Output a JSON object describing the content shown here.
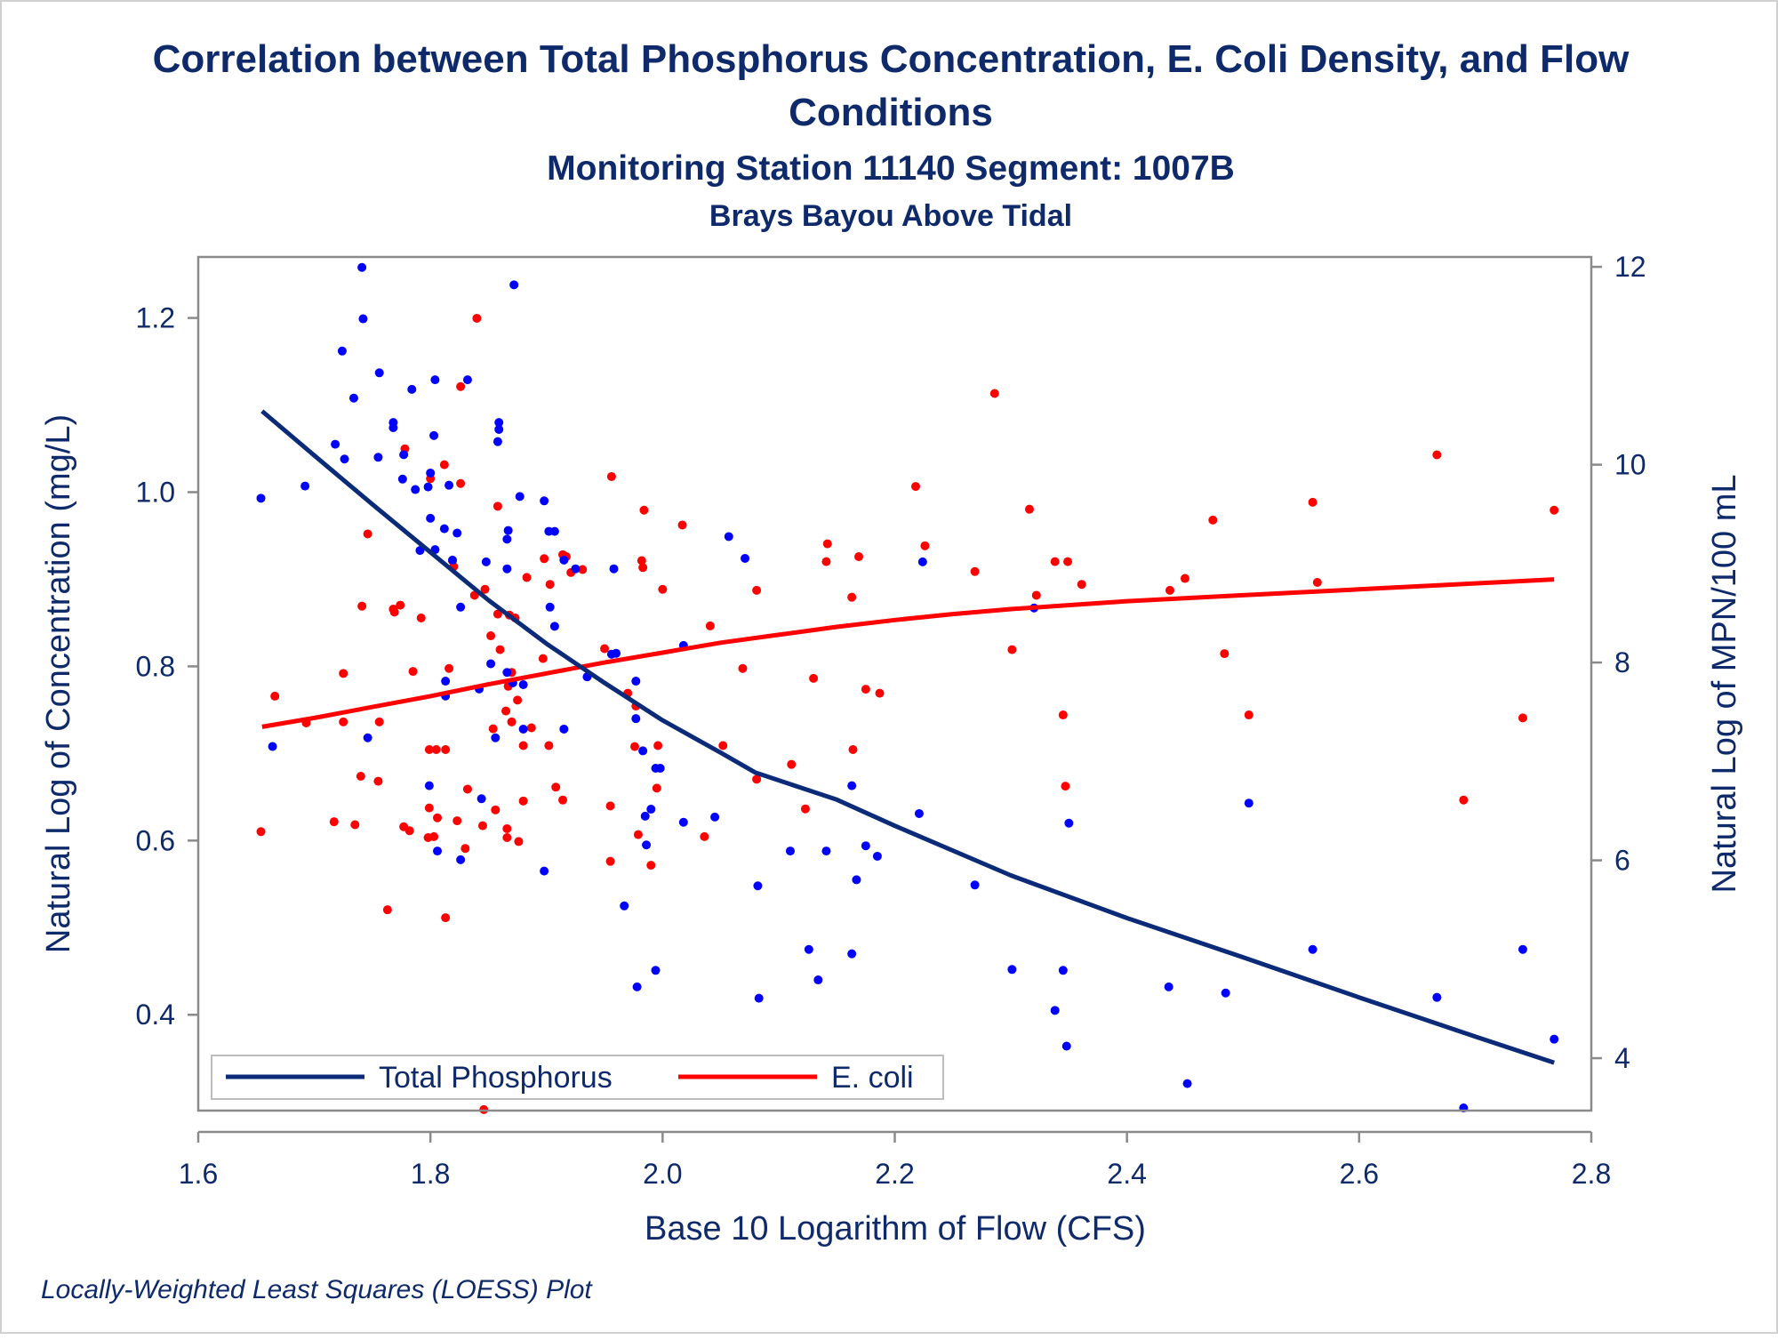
{
  "chart_data": {
    "type": "scatter",
    "title_line1": "Correlation between Total Phosphorus Concentration, E. Coli Density, and Flow",
    "title_line2": "Conditions",
    "subtitle": "Monitoring Station 11140 Segment: 1007B",
    "subtitle2": "Brays Bayou Above Tidal",
    "xlabel": "Base 10 Logarithm of Flow (CFS)",
    "ylabel": "Natural Log of Concentration (mg/L)",
    "y2label": "Natural Log of MPN/100 mL",
    "footnote": "Locally-Weighted Least Squares (LOESS) Plot",
    "xlim": [
      1.6,
      2.8
    ],
    "ylim": [
      0.29,
      1.27
    ],
    "y2lim": [
      3.47,
      12.1
    ],
    "xticks": [
      1.6,
      1.8,
      2.0,
      2.2,
      2.4,
      2.6,
      2.8
    ],
    "xtick_labels": [
      "1.6",
      "1.8",
      "2.0",
      "2.2",
      "2.4",
      "2.6",
      "2.8"
    ],
    "yticks": [
      0.4,
      0.6,
      0.8,
      1.0,
      1.2
    ],
    "ytick_labels": [
      "0.4",
      "0.6",
      "0.8",
      "1.0",
      "1.2"
    ],
    "y2ticks": [
      4,
      6,
      8,
      10,
      12
    ],
    "y2tick_labels": [
      "4",
      "6",
      "8",
      "10",
      "12"
    ],
    "grid": false,
    "legend_position": "bottom-left inside",
    "text_color": "#0f2a6b",
    "axis_color": "#8a8a8a",
    "series": [
      {
        "name": "Total Phosphorus",
        "axis": "left",
        "color": "#0b2a78",
        "point_color": "#0000ff",
        "points": [
          [
            1.654,
            0.993
          ],
          [
            1.664,
            0.708
          ],
          [
            1.692,
            1.007
          ],
          [
            1.718,
            1.055
          ],
          [
            1.724,
            1.162
          ],
          [
            1.726,
            1.038
          ],
          [
            1.734,
            1.108
          ],
          [
            1.741,
            1.258
          ],
          [
            1.742,
            1.199
          ],
          [
            1.746,
            0.718
          ],
          [
            1.755,
            1.04
          ],
          [
            1.756,
            1.137
          ],
          [
            1.768,
            1.074
          ],
          [
            1.768,
            1.08
          ],
          [
            1.776,
            1.015
          ],
          [
            1.777,
            1.043
          ],
          [
            1.784,
            1.118
          ],
          [
            1.787,
            1.003
          ],
          [
            1.791,
            0.933
          ],
          [
            1.798,
            1.006
          ],
          [
            1.799,
            0.663
          ],
          [
            1.8,
            0.97
          ],
          [
            1.8,
            1.022
          ],
          [
            1.803,
            1.065
          ],
          [
            1.804,
            1.129
          ],
          [
            1.804,
            0.934
          ],
          [
            1.806,
            0.588
          ],
          [
            1.812,
            0.958
          ],
          [
            1.813,
            0.783
          ],
          [
            1.813,
            0.766
          ],
          [
            1.816,
            1.008
          ],
          [
            1.819,
            0.922
          ],
          [
            1.823,
            0.953
          ],
          [
            1.826,
            0.578
          ],
          [
            1.826,
            0.868
          ],
          [
            1.832,
            1.129
          ],
          [
            1.842,
            0.774
          ],
          [
            1.844,
            0.648
          ],
          [
            1.848,
            0.92
          ],
          [
            1.852,
            0.803
          ],
          [
            1.856,
            0.718
          ],
          [
            1.858,
            1.058
          ],
          [
            1.859,
            1.072
          ],
          [
            1.859,
            1.08
          ],
          [
            1.866,
            0.793
          ],
          [
            1.866,
            0.912
          ],
          [
            1.866,
            0.946
          ],
          [
            1.867,
            0.956
          ],
          [
            1.871,
            0.781
          ],
          [
            1.872,
            1.238
          ],
          [
            1.877,
            0.995
          ],
          [
            1.88,
            0.728
          ],
          [
            1.88,
            0.779
          ],
          [
            1.898,
            0.99
          ],
          [
            1.898,
            0.565
          ],
          [
            1.902,
            0.955
          ],
          [
            1.903,
            0.868
          ],
          [
            1.907,
            0.846
          ],
          [
            1.907,
            0.955
          ],
          [
            1.915,
            0.922
          ],
          [
            1.915,
            0.728
          ],
          [
            1.925,
            0.912
          ],
          [
            1.935,
            0.788
          ],
          [
            1.956,
            0.814
          ],
          [
            1.958,
            0.912
          ],
          [
            1.96,
            0.815
          ],
          [
            1.967,
            0.525
          ],
          [
            1.977,
            0.74
          ],
          [
            1.977,
            0.783
          ],
          [
            1.978,
            0.432
          ],
          [
            1.983,
            0.703
          ],
          [
            1.985,
            0.628
          ],
          [
            1.986,
            0.595
          ],
          [
            1.99,
            0.636
          ],
          [
            1.994,
            0.683
          ],
          [
            1.994,
            0.451
          ],
          [
            1.998,
            0.683
          ],
          [
            2.018,
            0.621
          ],
          [
            2.018,
            0.824
          ],
          [
            2.045,
            0.627
          ],
          [
            2.057,
            0.949
          ],
          [
            2.071,
            0.924
          ],
          [
            2.082,
            0.548
          ],
          [
            2.083,
            0.419
          ],
          [
            2.11,
            0.588
          ],
          [
            2.126,
            0.475
          ],
          [
            2.134,
            0.44
          ],
          [
            2.141,
            0.588
          ],
          [
            2.163,
            0.663
          ],
          [
            2.163,
            0.47
          ],
          [
            2.167,
            0.555
          ],
          [
            2.175,
            0.594
          ],
          [
            2.185,
            0.582
          ],
          [
            2.221,
            0.631
          ],
          [
            2.224,
            0.92
          ],
          [
            2.269,
            0.549
          ],
          [
            2.301,
            0.452
          ],
          [
            2.32,
            0.867
          ],
          [
            2.338,
            0.405
          ],
          [
            2.345,
            0.451
          ],
          [
            2.348,
            0.364
          ],
          [
            2.35,
            0.62
          ],
          [
            2.436,
            0.432
          ],
          [
            2.452,
            0.321
          ],
          [
            2.485,
            0.425
          ],
          [
            2.505,
            0.643
          ],
          [
            2.56,
            0.475
          ],
          [
            2.667,
            0.42
          ],
          [
            2.69,
            0.293
          ],
          [
            2.741,
            0.475
          ],
          [
            2.768,
            0.372
          ]
        ],
        "loess": [
          [
            1.655,
            1.093
          ],
          [
            1.7,
            1.042
          ],
          [
            1.75,
            0.986
          ],
          [
            1.8,
            0.931
          ],
          [
            1.85,
            0.876
          ],
          [
            1.9,
            0.826
          ],
          [
            1.95,
            0.781
          ],
          [
            2.0,
            0.738
          ],
          [
            2.05,
            0.701
          ],
          [
            2.08,
            0.678
          ],
          [
            2.15,
            0.647
          ],
          [
            2.2,
            0.617
          ],
          [
            2.3,
            0.56
          ],
          [
            2.4,
            0.511
          ],
          [
            2.5,
            0.466
          ],
          [
            2.6,
            0.42
          ],
          [
            2.7,
            0.375
          ],
          [
            2.768,
            0.345
          ]
        ]
      },
      {
        "name": "E. coli",
        "axis": "right",
        "color": "#ff0000",
        "point_color": "#ff0000",
        "points": [
          [
            1.654,
            6.29
          ],
          [
            1.666,
            7.66
          ],
          [
            1.693,
            7.39
          ],
          [
            1.717,
            6.39
          ],
          [
            1.725,
            7.89
          ],
          [
            1.725,
            7.4
          ],
          [
            1.735,
            6.36
          ],
          [
            1.74,
            6.85
          ],
          [
            1.741,
            8.57
          ],
          [
            1.746,
            9.3
          ],
          [
            1.755,
            6.8
          ],
          [
            1.756,
            7.4
          ],
          [
            1.763,
            5.5
          ],
          [
            1.768,
            8.54
          ],
          [
            1.769,
            8.51
          ],
          [
            1.774,
            8.58
          ],
          [
            1.777,
            6.34
          ],
          [
            1.778,
            10.16
          ],
          [
            1.782,
            6.3
          ],
          [
            1.785,
            7.91
          ],
          [
            1.792,
            8.45
          ],
          [
            1.798,
            6.23
          ],
          [
            1.799,
            7.12
          ],
          [
            1.799,
            6.53
          ],
          [
            1.8,
            9.86
          ],
          [
            1.803,
            6.24
          ],
          [
            1.805,
            7.12
          ],
          [
            1.806,
            6.43
          ],
          [
            1.812,
            10.0
          ],
          [
            1.813,
            7.12
          ],
          [
            1.813,
            5.42
          ],
          [
            1.816,
            7.94
          ],
          [
            1.819,
            9.03
          ],
          [
            1.82,
            8.97
          ],
          [
            1.823,
            6.4
          ],
          [
            1.826,
            10.79
          ],
          [
            1.826,
            9.81
          ],
          [
            1.83,
            6.12
          ],
          [
            1.832,
            6.72
          ],
          [
            1.838,
            8.68
          ],
          [
            1.84,
            11.48
          ],
          [
            1.845,
            6.35
          ],
          [
            1.846,
            3.48
          ],
          [
            1.847,
            8.74
          ],
          [
            1.852,
            8.27
          ],
          [
            1.854,
            7.33
          ],
          [
            1.856,
            6.51
          ],
          [
            1.858,
            9.58
          ],
          [
            1.858,
            8.49
          ],
          [
            1.86,
            8.13
          ],
          [
            1.865,
            7.51
          ],
          [
            1.866,
            6.32
          ],
          [
            1.866,
            6.23
          ],
          [
            1.867,
            7.76
          ],
          [
            1.868,
            8.48
          ],
          [
            1.87,
            7.4
          ],
          [
            1.87,
            7.9
          ],
          [
            1.873,
            8.45
          ],
          [
            1.875,
            7.62
          ],
          [
            1.876,
            6.19
          ],
          [
            1.88,
            7.16
          ],
          [
            1.88,
            6.6
          ],
          [
            1.883,
            8.86
          ],
          [
            1.887,
            7.34
          ],
          [
            1.897,
            8.04
          ],
          [
            1.898,
            9.05
          ],
          [
            1.902,
            7.16
          ],
          [
            1.903,
            8.79
          ],
          [
            1.908,
            6.74
          ],
          [
            1.914,
            9.09
          ],
          [
            1.914,
            6.61
          ],
          [
            1.917,
            9.07
          ],
          [
            1.921,
            8.91
          ],
          [
            1.931,
            8.94
          ],
          [
            1.95,
            8.14
          ],
          [
            1.955,
            6.55
          ],
          [
            1.955,
            5.99
          ],
          [
            1.956,
            9.88
          ],
          [
            1.97,
            7.69
          ],
          [
            1.976,
            7.15
          ],
          [
            1.977,
            7.56
          ],
          [
            1.979,
            6.26
          ],
          [
            1.982,
            9.03
          ],
          [
            1.983,
            8.96
          ],
          [
            1.984,
            9.54
          ],
          [
            1.99,
            5.95
          ],
          [
            1.995,
            6.73
          ],
          [
            1.996,
            7.16
          ],
          [
            2.0,
            8.74
          ],
          [
            2.017,
            9.39
          ],
          [
            2.036,
            6.24
          ],
          [
            2.041,
            8.37
          ],
          [
            2.052,
            7.16
          ],
          [
            2.069,
            7.94
          ],
          [
            2.081,
            8.73
          ],
          [
            2.081,
            6.82
          ],
          [
            2.111,
            6.97
          ],
          [
            2.123,
            6.52
          ],
          [
            2.13,
            7.84
          ],
          [
            2.141,
            9.02
          ],
          [
            2.142,
            9.2
          ],
          [
            2.163,
            8.66
          ],
          [
            2.164,
            7.12
          ],
          [
            2.169,
            9.07
          ],
          [
            2.175,
            7.73
          ],
          [
            2.187,
            7.69
          ],
          [
            2.218,
            9.78
          ],
          [
            2.226,
            9.18
          ],
          [
            2.269,
            8.92
          ],
          [
            2.286,
            10.72
          ],
          [
            2.301,
            8.13
          ],
          [
            2.316,
            9.55
          ],
          [
            2.322,
            8.68
          ],
          [
            2.338,
            9.02
          ],
          [
            2.345,
            7.47
          ],
          [
            2.347,
            6.75
          ],
          [
            2.349,
            9.02
          ],
          [
            2.361,
            8.79
          ],
          [
            2.437,
            8.73
          ],
          [
            2.45,
            8.85
          ],
          [
            2.474,
            9.44
          ],
          [
            2.484,
            8.09
          ],
          [
            2.505,
            7.47
          ],
          [
            2.56,
            9.62
          ],
          [
            2.564,
            8.81
          ],
          [
            2.667,
            10.1
          ],
          [
            2.69,
            6.61
          ],
          [
            2.741,
            7.44
          ],
          [
            2.768,
            9.54
          ]
        ],
        "loess": [
          [
            1.655,
            7.35
          ],
          [
            1.7,
            7.44
          ],
          [
            1.75,
            7.55
          ],
          [
            1.8,
            7.66
          ],
          [
            1.85,
            7.78
          ],
          [
            1.9,
            7.89
          ],
          [
            1.95,
            8.0
          ],
          [
            2.0,
            8.1
          ],
          [
            2.05,
            8.2
          ],
          [
            2.1,
            8.28
          ],
          [
            2.15,
            8.36
          ],
          [
            2.2,
            8.43
          ],
          [
            2.25,
            8.49
          ],
          [
            2.3,
            8.54
          ],
          [
            2.4,
            8.62
          ],
          [
            2.5,
            8.68
          ],
          [
            2.6,
            8.74
          ],
          [
            2.7,
            8.8
          ],
          [
            2.768,
            8.84
          ]
        ]
      }
    ]
  }
}
